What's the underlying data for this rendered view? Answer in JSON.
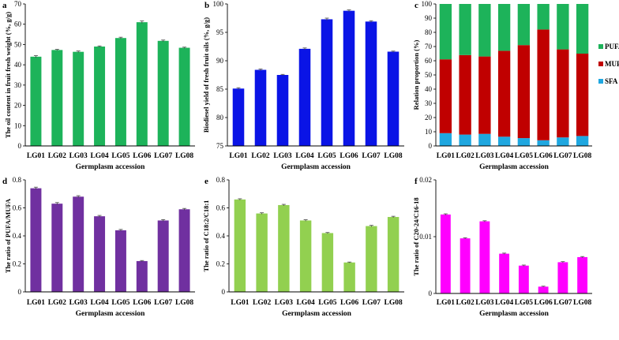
{
  "chart_data": [
    {
      "panel": "a",
      "type": "bar",
      "categories": [
        "LG01",
        "LG02",
        "LG03",
        "LG04",
        "LG05",
        "LG06",
        "LG07",
        "LG08"
      ],
      "values": [
        44.0,
        47.3,
        46.4,
        49.0,
        53.2,
        61.0,
        51.8,
        48.4
      ],
      "errors": [
        0.5,
        0.3,
        0.4,
        0.3,
        0.4,
        0.6,
        0.4,
        0.3
      ],
      "color": "#1db35a",
      "ylim": [
        0,
        70
      ],
      "yticks": [
        0,
        10,
        20,
        30,
        40,
        50,
        60,
        70
      ],
      "ytick_labels": [
        "0",
        "10",
        "20",
        "30",
        "40",
        "50",
        "60",
        "70"
      ],
      "ylabel": "The oil content in fruit fresh weight (%, g/g)",
      "xlabel": "Germplasm accession"
    },
    {
      "panel": "b",
      "type": "bar",
      "categories": [
        "LG01",
        "LG02",
        "LG03",
        "LG04",
        "LG05",
        "LG06",
        "LG07",
        "LG08"
      ],
      "values": [
        85.1,
        88.4,
        87.5,
        92.1,
        97.3,
        98.8,
        96.9,
        91.6
      ],
      "errors": [
        0.15,
        0.15,
        0.1,
        0.15,
        0.2,
        0.15,
        0.15,
        0.1
      ],
      "color": "#0a14e6",
      "ylim": [
        75,
        100
      ],
      "yticks": [
        75,
        80,
        85,
        90,
        95,
        100
      ],
      "ytick_labels": [
        "75",
        "80",
        "85",
        "90",
        "95",
        "100"
      ],
      "ylabel": "Biodiesel yield of fresh fruit oils (%, g/g)",
      "xlabel": "Germplasm accession"
    },
    {
      "panel": "c",
      "type": "stacked_bar",
      "categories": [
        "LG01",
        "LG02",
        "LG03",
        "LG04",
        "LG05",
        "LG06",
        "LG07",
        "LG08"
      ],
      "series": [
        {
          "name": "SFA",
          "color": "#1fa7e0",
          "values": [
            9,
            8,
            8.5,
            6.5,
            5.5,
            4,
            6,
            7
          ]
        },
        {
          "name": "MUFA",
          "color": "#c00000",
          "values": [
            52,
            56,
            54.5,
            60.5,
            65.5,
            78,
            62,
            58
          ]
        },
        {
          "name": "PUFA",
          "color": "#1db35a",
          "values": [
            39,
            36,
            37,
            33,
            29,
            18,
            32,
            35
          ]
        }
      ],
      "legend": [
        "PUFA",
        "MUFA",
        "SFA"
      ],
      "ylim": [
        0,
        100
      ],
      "yticks": [
        0,
        10,
        20,
        30,
        40,
        50,
        60,
        70,
        80,
        90,
        100
      ],
      "ytick_labels": [
        "0",
        "10",
        "20",
        "30",
        "40",
        "50",
        "60",
        "70",
        "80",
        "90",
        "100"
      ],
      "ylabel": "Relation proportion (%)",
      "xlabel": "Germplasm accession"
    },
    {
      "panel": "d",
      "type": "bar",
      "categories": [
        "LG01",
        "LG02",
        "LG03",
        "LG04",
        "LG05",
        "LG06",
        "LG07",
        "LG08"
      ],
      "values": [
        0.74,
        0.63,
        0.68,
        0.54,
        0.44,
        0.22,
        0.51,
        0.59
      ],
      "errors": [
        0.008,
        0.008,
        0.007,
        0.006,
        0.006,
        0.004,
        0.006,
        0.006
      ],
      "color": "#7030a0",
      "ylim": [
        0,
        0.8
      ],
      "yticks": [
        0,
        0.2,
        0.4,
        0.6,
        0.8
      ],
      "ytick_labels": [
        "0",
        "0.2",
        "0.4",
        "0.6",
        "0.8"
      ],
      "ylabel": "The ratio of PUFA/MUFA",
      "xlabel": "Germplasm accession"
    },
    {
      "panel": "e",
      "type": "bar",
      "categories": [
        "LG01",
        "LG02",
        "LG03",
        "LG04",
        "LG05",
        "LG06",
        "LG07",
        "LG08"
      ],
      "values": [
        0.66,
        0.56,
        0.62,
        0.51,
        0.42,
        0.21,
        0.47,
        0.535
      ],
      "errors": [
        0.005,
        0.005,
        0.005,
        0.005,
        0.004,
        0.003,
        0.005,
        0.005
      ],
      "color": "#92d050",
      "ylim": [
        0,
        0.8
      ],
      "yticks": [
        0,
        0.2,
        0.4,
        0.6,
        0.8
      ],
      "ytick_labels": [
        "0",
        "0.2",
        "0.4",
        "0.6",
        "0.8"
      ],
      "ylabel": "The ratio of C18:2/C18:1",
      "xlabel": "Germplasm accession"
    },
    {
      "panel": "f",
      "type": "bar",
      "categories": [
        "LG01",
        "LG02",
        "LG03",
        "LG04",
        "LG05",
        "LG06",
        "LG07",
        "LG08"
      ],
      "values": [
        0.0139,
        0.0097,
        0.0127,
        0.007,
        0.0049,
        0.0012,
        0.0055,
        0.0064
      ],
      "errors": [
        0.00012,
        0.0001,
        0.0001,
        0.0001,
        0.0001,
        8e-05,
        0.0001,
        0.0001
      ],
      "color": "#ff00ff",
      "ylim": [
        0,
        0.02
      ],
      "yticks": [
        0,
        0.01,
        0.02
      ],
      "ytick_labels": [
        "0",
        "0.01",
        "0.02"
      ],
      "ylabel": "The ratio of C20-24/C16-18",
      "xlabel": "Germplasm accession"
    }
  ]
}
